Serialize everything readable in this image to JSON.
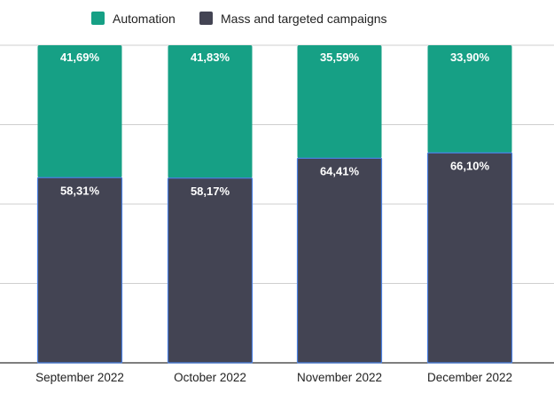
{
  "chart_data": {
    "type": "bar",
    "stacked": true,
    "normalized_percent": true,
    "categories": [
      "September 2022",
      "October 2022",
      "November 2022",
      "December 2022"
    ],
    "series": [
      {
        "name": "Mass and targeted campaigns",
        "values": [
          58.31,
          58.17,
          64.41,
          66.1
        ],
        "labels": [
          "58,31%",
          "58,17%",
          "64,41%",
          "66,10%"
        ],
        "color": "#434453"
      },
      {
        "name": "Automation",
        "values": [
          41.69,
          41.83,
          35.59,
          33.9
        ],
        "labels": [
          "41,69%",
          "41,83%",
          "35,59%",
          "33,90%"
        ],
        "color": "#16a085"
      }
    ],
    "legend": {
      "position": "top",
      "order": [
        "Automation",
        "Mass and targeted campaigns"
      ]
    },
    "ylim": [
      0,
      100
    ],
    "grid": true,
    "title": "",
    "xlabel": "",
    "ylabel": ""
  }
}
